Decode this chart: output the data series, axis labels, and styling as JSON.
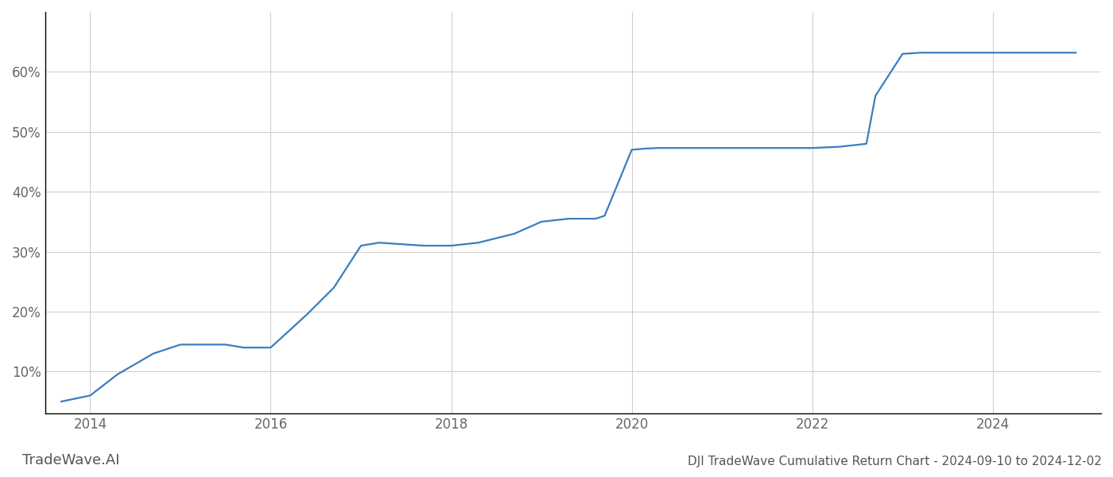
{
  "title": "DJI TradeWave Cumulative Return Chart - 2024-09-10 to 2024-12-02",
  "watermark": "TradeWave.AI",
  "line_color": "#3a7ebf",
  "background_color": "#ffffff",
  "grid_color": "#cccccc",
  "x_values": [
    2013.68,
    2014.0,
    2014.3,
    2014.7,
    2015.0,
    2015.5,
    2015.7,
    2016.0,
    2016.4,
    2016.7,
    2017.0,
    2017.2,
    2017.7,
    2018.0,
    2018.3,
    2018.7,
    2019.0,
    2019.3,
    2019.6,
    2019.7,
    2020.0,
    2020.15,
    2020.3,
    2020.7,
    2021.0,
    2021.5,
    2021.7,
    2022.0,
    2022.3,
    2022.6,
    2022.7,
    2023.0,
    2023.2,
    2023.5,
    2023.7,
    2024.0,
    2024.5,
    2024.92
  ],
  "y_values": [
    5.0,
    6.0,
    9.5,
    13.0,
    14.5,
    14.5,
    14.0,
    14.0,
    19.5,
    24.0,
    31.0,
    31.5,
    31.0,
    31.0,
    31.5,
    33.0,
    35.0,
    35.5,
    35.5,
    36.0,
    47.0,
    47.2,
    47.3,
    47.3,
    47.3,
    47.3,
    47.3,
    47.3,
    47.5,
    48.0,
    56.0,
    63.0,
    63.2,
    63.2,
    63.2,
    63.2,
    63.2,
    63.2
  ],
  "xlim": [
    2013.5,
    2025.2
  ],
  "ylim": [
    3,
    70
  ],
  "yticks": [
    10,
    20,
    30,
    40,
    50,
    60
  ],
  "ytick_labels": [
    "10%",
    "20%",
    "30%",
    "40%",
    "50%",
    "60%"
  ],
  "xticks": [
    2014,
    2016,
    2018,
    2020,
    2022,
    2024
  ],
  "line_width": 1.6,
  "title_fontsize": 11,
  "tick_fontsize": 12,
  "watermark_fontsize": 13
}
